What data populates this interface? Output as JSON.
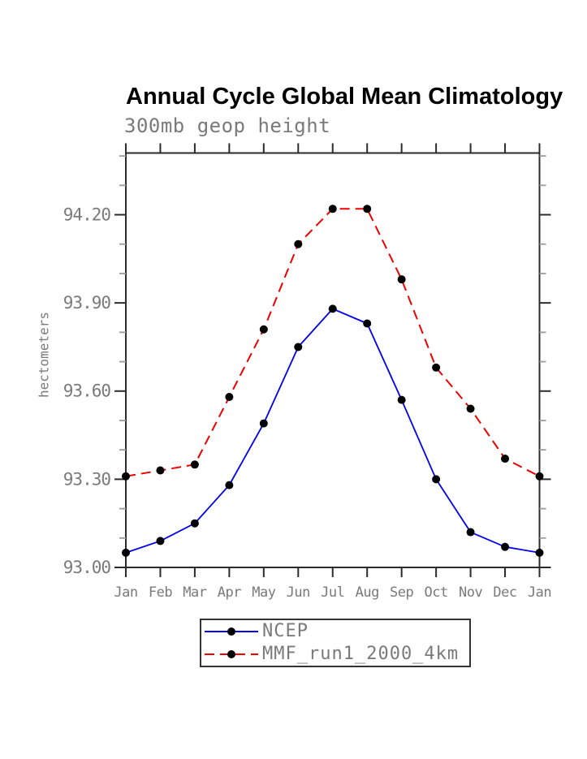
{
  "header": {
    "title": "Annual Cycle Global Mean Climatology",
    "subtitle": "300mb geop height"
  },
  "chart_data": {
    "type": "line",
    "title": "Annual Cycle Global Mean Climatology",
    "subtitle": "300mb geop height",
    "xlabel": "",
    "ylabel": "hectometers",
    "categories": [
      "Jan",
      "Feb",
      "Mar",
      "Apr",
      "May",
      "Jun",
      "Jul",
      "Aug",
      "Sep",
      "Oct",
      "Nov",
      "Dec",
      "Jan"
    ],
    "ylim": [
      93.0,
      94.41
    ],
    "y_major_ticks": [
      93.0,
      93.3,
      93.6,
      93.9,
      94.2
    ],
    "y_tick_labels": [
      "93.00",
      "93.30",
      "93.60",
      "93.90",
      "94.20"
    ],
    "y_minor_step": 0.1,
    "grid": false,
    "legend_position": "bottom-center",
    "series": [
      {
        "name": "NCEP",
        "color": "#0000ee",
        "line_style": "solid",
        "marker": "filled-circle",
        "marker_color": "#000000",
        "values": [
          93.05,
          93.09,
          93.15,
          93.28,
          93.49,
          93.75,
          93.88,
          93.83,
          93.57,
          93.3,
          93.12,
          93.07,
          93.05
        ]
      },
      {
        "name": "MMF_run1_2000_4km",
        "color": "#ee0000",
        "line_style": "dashed",
        "marker": "filled-circle",
        "marker_color": "#000000",
        "values": [
          93.31,
          93.33,
          93.35,
          93.58,
          93.81,
          94.1,
          94.22,
          94.22,
          93.98,
          93.68,
          93.54,
          93.37,
          93.31
        ]
      }
    ],
    "axis_color": "#2b2b2b",
    "minor_tick_color": "#9a9a9a",
    "label_color": "#7a7a7a"
  }
}
